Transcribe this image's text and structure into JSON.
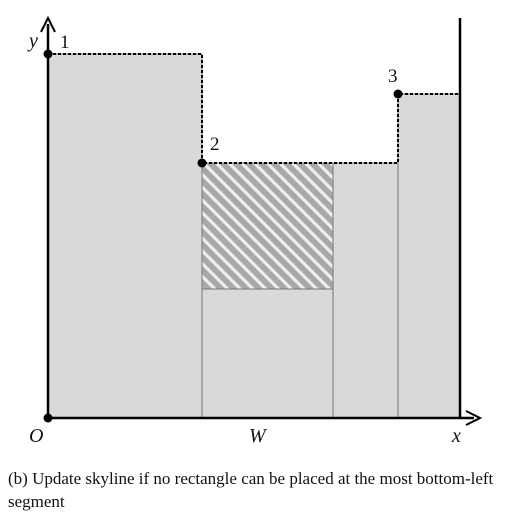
{
  "diagram": {
    "axis_labels": {
      "y": "y",
      "x": "x",
      "origin": "O",
      "width": "W"
    },
    "points": [
      {
        "label": "1"
      },
      {
        "label": "2"
      },
      {
        "label": "3"
      }
    ],
    "colors": {
      "fill": "#d9d9d9",
      "edge": "#777777",
      "axis": "#000000",
      "skyline": "#000000",
      "hatch_stripe": "#eeeeee",
      "hatch_base": "#a8a8a8"
    }
  },
  "caption": "(b) Update skyline if no rectangle can be placed at the most bottom-left segment"
}
